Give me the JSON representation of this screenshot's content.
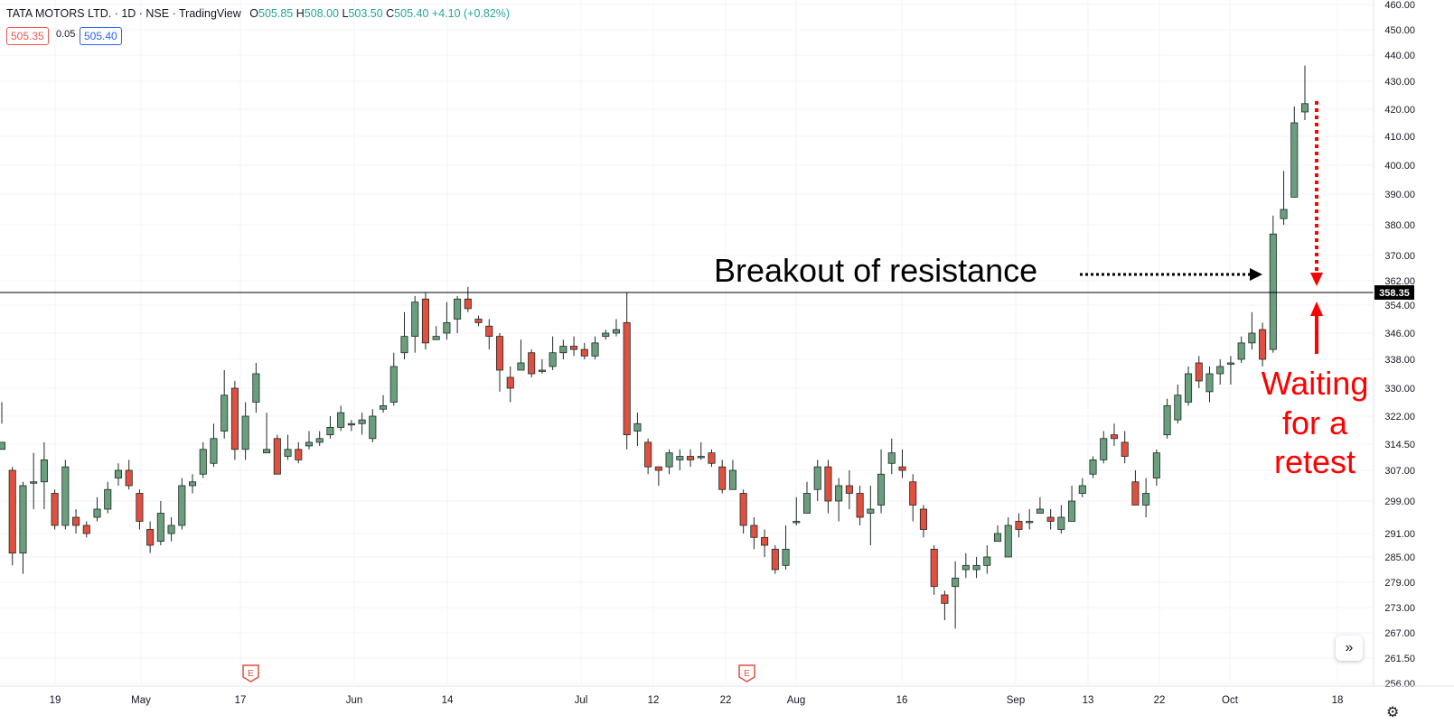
{
  "header": {
    "title": "TATA MOTORS LTD. · 1D · NSE · TradingView",
    "ohlc": {
      "o_label": "O",
      "o": "505.85",
      "h_label": "H",
      "h": "508.00",
      "l_label": "L",
      "l": "503.50",
      "c_label": "C",
      "c": "505.40",
      "change": "+4.10 (+0.82%)"
    },
    "bid": "505.35",
    "spread": "0.05",
    "ask": "505.40"
  },
  "colors": {
    "up": "#6a9f7e",
    "down": "#e04f3f",
    "annotation_black": "#000000",
    "annotation_red": "#ff0000"
  },
  "icons": {
    "scroll_right": "double-chevron-right-icon",
    "settings": "gear-icon",
    "earnings": "earnings-flag-icon"
  },
  "annotations": {
    "breakout_text": "Breakout of resistance",
    "retest_line1": "Waiting",
    "retest_line2": "for a",
    "retest_line3": "retest"
  },
  "chart_data": {
    "type": "candlestick",
    "ylim": [
      256,
      460
    ],
    "y_ticks": [
      "256.00",
      "261.50",
      "267.00",
      "273.00",
      "279.00",
      "285.00",
      "291.00",
      "299.00",
      "307.00",
      "314.50",
      "322.00",
      "330.00",
      "338.00",
      "346.00",
      "354.00",
      "362.00",
      "370.00",
      "380.00",
      "390.00",
      "400.00",
      "410.00",
      "420.00",
      "430.00",
      "440.00",
      "450.00",
      "460.00"
    ],
    "x_tick_labels": [
      "19",
      "May",
      "17",
      "Jun",
      "14",
      "Jul",
      "12",
      "22",
      "Aug",
      "16",
      "Sep",
      "13",
      "22",
      "Oct",
      "18"
    ],
    "resistance_level": "358.35",
    "earnings_markers": [
      "E",
      "E"
    ],
    "candles": [
      [
        313,
        315,
        326,
        320
      ],
      [
        307,
        286,
        308,
        283
      ],
      [
        286,
        303,
        304,
        281
      ],
      [
        304,
        304,
        312,
        297
      ],
      [
        304,
        310,
        315,
        297
      ],
      [
        301,
        293,
        302,
        292
      ],
      [
        293,
        308,
        310,
        292
      ],
      [
        295,
        293,
        297,
        291
      ],
      [
        293,
        291,
        294,
        290
      ],
      [
        295,
        297,
        300,
        294
      ],
      [
        297,
        302,
        304,
        296
      ],
      [
        305,
        307,
        309,
        303
      ],
      [
        307,
        303,
        310,
        302
      ],
      [
        301,
        294,
        302,
        292
      ],
      [
        292,
        288,
        294,
        286
      ],
      [
        289,
        296,
        299,
        288
      ],
      [
        291,
        293,
        295,
        289
      ],
      [
        293,
        303,
        305,
        292
      ],
      [
        303,
        304,
        306,
        301
      ],
      [
        306,
        313,
        315,
        305
      ],
      [
        309,
        316,
        320,
        308
      ],
      [
        318,
        328,
        335,
        316
      ],
      [
        330,
        313,
        332,
        310
      ],
      [
        313,
        322,
        326,
        310
      ],
      [
        326,
        334,
        337,
        323
      ],
      [
        312,
        313,
        323,
        312
      ],
      [
        316,
        306,
        317,
        307
      ],
      [
        311,
        313,
        317,
        310
      ],
      [
        313,
        310,
        315,
        309
      ],
      [
        314,
        315,
        318,
        313
      ],
      [
        315,
        316,
        318,
        314
      ],
      [
        317,
        319,
        322,
        316
      ],
      [
        319,
        323,
        325,
        318
      ],
      [
        320,
        320,
        321,
        318
      ],
      [
        320,
        321,
        323,
        317
      ],
      [
        316,
        322,
        324,
        315
      ],
      [
        324,
        325,
        328,
        323
      ],
      [
        326,
        336,
        340,
        325
      ],
      [
        340,
        345,
        352,
        338
      ],
      [
        345,
        355,
        357,
        340
      ],
      [
        356,
        343,
        358,
        341
      ],
      [
        344,
        345,
        348,
        344
      ],
      [
        346,
        349,
        355,
        344
      ],
      [
        350,
        356,
        357,
        346
      ],
      [
        356,
        353,
        360,
        352
      ],
      [
        350,
        349,
        351,
        348
      ],
      [
        348,
        345,
        350,
        341
      ],
      [
        345,
        335,
        346,
        329
      ],
      [
        333,
        330,
        336,
        326
      ],
      [
        335,
        337,
        344,
        335
      ],
      [
        340,
        334,
        341,
        333
      ],
      [
        335,
        335,
        338,
        334
      ],
      [
        336,
        340,
        345,
        335
      ],
      [
        340,
        342,
        344,
        338
      ],
      [
        342,
        341,
        345,
        339
      ],
      [
        341,
        339,
        343,
        338
      ],
      [
        339,
        343,
        345,
        338
      ],
      [
        345,
        346,
        347,
        344
      ],
      [
        346,
        347,
        350,
        345
      ],
      [
        349,
        317,
        358,
        313
      ],
      [
        318,
        320,
        323,
        314
      ],
      [
        315,
        308,
        316,
        306
      ],
      [
        308,
        307,
        308,
        303
      ],
      [
        308,
        312,
        313,
        306
      ],
      [
        310,
        311,
        313,
        307
      ],
      [
        311,
        310,
        313,
        308
      ],
      [
        311,
        311,
        315,
        310
      ],
      [
        312,
        309,
        313,
        308
      ],
      [
        308,
        302,
        310,
        301
      ],
      [
        302,
        307,
        310,
        302
      ],
      [
        301,
        293,
        302,
        291
      ],
      [
        293,
        290,
        295,
        287
      ],
      [
        290,
        288,
        292,
        285
      ],
      [
        287,
        282,
        288,
        281
      ],
      [
        283,
        287,
        293,
        282
      ],
      [
        294,
        294,
        300,
        293
      ],
      [
        296,
        301,
        304,
        296
      ],
      [
        302,
        308,
        310,
        299
      ],
      [
        308,
        299,
        310,
        296
      ],
      [
        299,
        303,
        305,
        294
      ],
      [
        303,
        301,
        307,
        297
      ],
      [
        301,
        295,
        303,
        293
      ],
      [
        296,
        297,
        303,
        288
      ],
      [
        298,
        306,
        313,
        296
      ],
      [
        309,
        312,
        316,
        306
      ],
      [
        308,
        307,
        313,
        305
      ],
      [
        304,
        298,
        306,
        294
      ],
      [
        297,
        292,
        298,
        290
      ],
      [
        287,
        278,
        288,
        276
      ],
      [
        276,
        274,
        277,
        270
      ],
      [
        278,
        280,
        284,
        268
      ],
      [
        282,
        283,
        286,
        280
      ],
      [
        282,
        283,
        285,
        280
      ],
      [
        283,
        285,
        288,
        281
      ],
      [
        289,
        291,
        293,
        289
      ],
      [
        285,
        293,
        295,
        285
      ],
      [
        294,
        292,
        296,
        290
      ],
      [
        294,
        294,
        297,
        292
      ],
      [
        296,
        297,
        300,
        296
      ],
      [
        295,
        294,
        297,
        292
      ],
      [
        292,
        295,
        298,
        291
      ],
      [
        294,
        299,
        303,
        294
      ],
      [
        301,
        303,
        305,
        300
      ],
      [
        306,
        310,
        311,
        305
      ],
      [
        310,
        316,
        318,
        309
      ],
      [
        317,
        316,
        320,
        314
      ],
      [
        315,
        311,
        318,
        309
      ],
      [
        304,
        298,
        307,
        298
      ],
      [
        298,
        301,
        305,
        295
      ],
      [
        305,
        312,
        313,
        303
      ],
      [
        317,
        325,
        327,
        316
      ],
      [
        321,
        328,
        331,
        320
      ],
      [
        326,
        334,
        336,
        325
      ],
      [
        337,
        332,
        339,
        330
      ],
      [
        329,
        334,
        336,
        326
      ],
      [
        334,
        336,
        338,
        331
      ],
      [
        337,
        337,
        339,
        331
      ],
      [
        338,
        343,
        345,
        337
      ],
      [
        343,
        346,
        352,
        341
      ],
      [
        347,
        338,
        349,
        336
      ],
      [
        341,
        377,
        383,
        340
      ],
      [
        382,
        385,
        398,
        380
      ],
      [
        389,
        415,
        421,
        389
      ],
      [
        419,
        422,
        436,
        416
      ]
    ]
  }
}
